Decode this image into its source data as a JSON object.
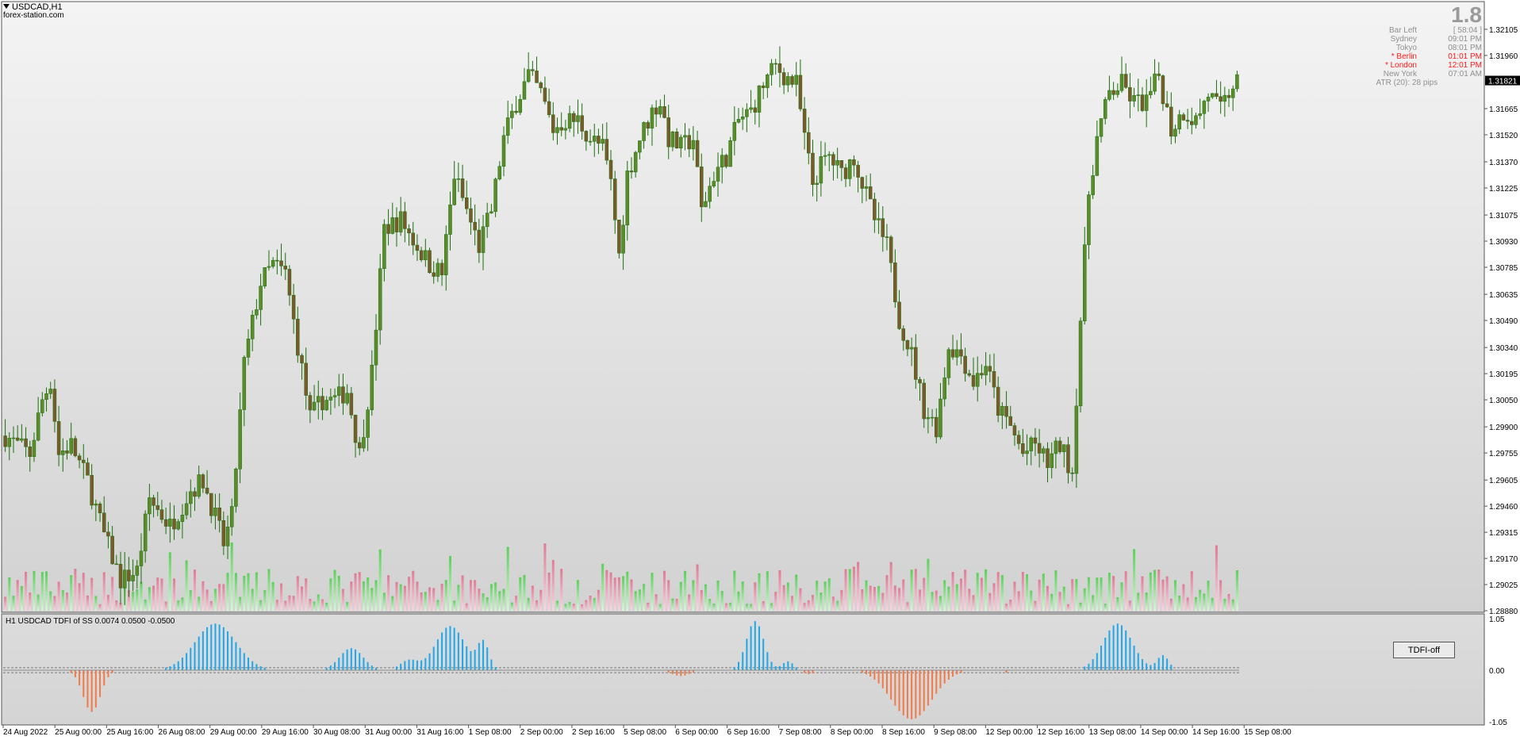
{
  "header": {
    "symbol_title": "USDCAD,H1",
    "watermark": "forex-station.com",
    "big_value": "1.8"
  },
  "info_panel": [
    {
      "label": "Bar Left",
      "value": "[ 58:04 ]",
      "color": "#8f8f8f"
    },
    {
      "label": "Sydney",
      "value": "09:01 PM",
      "color": "#8f8f8f"
    },
    {
      "label": "Tokyo",
      "value": "08:01 PM",
      "color": "#8f8f8f"
    },
    {
      "label": "* Berlin",
      "value": "01:01 PM",
      "color": "#ff1a1a"
    },
    {
      "label": "* London",
      "value": "12:01 PM",
      "color": "#ff1a1a"
    },
    {
      "label": "New York",
      "value": "07:01 AM",
      "color": "#8f8f8f"
    },
    {
      "label": "ATR (20): 28 pips",
      "value": "",
      "color": "#8f8f8f"
    }
  ],
  "indicator": {
    "label": "H1 USDCAD TDFI of SS 0.0074 0.0500 -0.0500",
    "button_label": "TDFI-off"
  },
  "chart_data": [
    {
      "type": "candlestick",
      "symbol": "USDCAD",
      "timeframe": "H1",
      "current_price": "1.31821",
      "ylim": [
        1.2888,
        1.3225
      ],
      "y_ticks": [
        "1.32105",
        "1.31960",
        "1.31665",
        "1.31520",
        "1.31370",
        "1.31225",
        "1.31075",
        "1.30930",
        "1.30785",
        "1.30635",
        "1.30490",
        "1.30340",
        "1.30195",
        "1.30050",
        "1.29900",
        "1.29755",
        "1.29605",
        "1.29460",
        "1.29315",
        "1.29170",
        "1.29025",
        "1.28880"
      ],
      "x_ticks": [
        "24 Aug 2022",
        "25 Aug 00:00",
        "25 Aug 16:00",
        "26 Aug 08:00",
        "29 Aug 00:00",
        "29 Aug 16:00",
        "30 Aug 08:00",
        "31 Aug 00:00",
        "31 Aug 16:00",
        "1 Sep 08:00",
        "2 Sep 00:00",
        "2 Sep 16:00",
        "5 Sep 08:00",
        "6 Sep 00:00",
        "6 Sep 16:00",
        "7 Sep 08:00",
        "8 Sep 00:00",
        "8 Sep 16:00",
        "9 Sep 08:00",
        "12 Sep 00:00",
        "12 Sep 16:00",
        "13 Sep 08:00",
        "14 Sep 00:00",
        "14 Sep 16:00",
        "15 Sep 08:00"
      ],
      "close_path": [
        [
          0,
          1.2985
        ],
        [
          6,
          1.2975
        ],
        [
          9,
          1.3005
        ],
        [
          11,
          1.3015
        ],
        [
          13,
          1.2975
        ],
        [
          16,
          1.298
        ],
        [
          20,
          1.296
        ],
        [
          24,
          1.293
        ],
        [
          28,
          1.2905
        ],
        [
          32,
          1.291
        ],
        [
          35,
          1.295
        ],
        [
          40,
          1.2935
        ],
        [
          45,
          1.2955
        ],
        [
          48,
          1.296
        ],
        [
          51,
          1.294
        ],
        [
          53,
          1.2925
        ],
        [
          55,
          1.294
        ],
        [
          58,
          1.3025
        ],
        [
          62,
          1.307
        ],
        [
          65,
          1.308
        ],
        [
          68,
          1.3075
        ],
        [
          71,
          1.3035
        ],
        [
          74,
          1.2995
        ],
        [
          77,
          1.3005
        ],
        [
          80,
          1.3005
        ],
        [
          83,
          1.301
        ],
        [
          86,
          1.2975
        ],
        [
          89,
          1.302
        ],
        [
          92,
          1.31
        ],
        [
          96,
          1.3105
        ],
        [
          100,
          1.309
        ],
        [
          103,
          1.308
        ],
        [
          106,
          1.3075
        ],
        [
          109,
          1.313
        ],
        [
          112,
          1.311
        ],
        [
          115,
          1.309
        ],
        [
          118,
          1.311
        ],
        [
          121,
          1.315
        ],
        [
          124,
          1.317
        ],
        [
          127,
          1.3185
        ],
        [
          130,
          1.3175
        ],
        [
          133,
          1.3155
        ],
        [
          136,
          1.316
        ],
        [
          139,
          1.316
        ],
        [
          142,
          1.315
        ],
        [
          145,
          1.3145
        ],
        [
          147,
          1.3125
        ],
        [
          149,
          1.3085
        ],
        [
          151,
          1.313
        ],
        [
          154,
          1.315
        ],
        [
          157,
          1.3165
        ],
        [
          159,
          1.317
        ],
        [
          161,
          1.315
        ],
        [
          164,
          1.3145
        ],
        [
          167,
          1.315
        ],
        [
          169,
          1.311
        ],
        [
          172,
          1.313
        ],
        [
          175,
          1.314
        ],
        [
          178,
          1.316
        ],
        [
          181,
          1.3165
        ],
        [
          184,
          1.318
        ],
        [
          187,
          1.319
        ],
        [
          189,
          1.3185
        ],
        [
          192,
          1.318
        ],
        [
          194,
          1.315
        ],
        [
          196,
          1.3125
        ],
        [
          198,
          1.3135
        ],
        [
          200,
          1.314
        ],
        [
          203,
          1.313
        ],
        [
          206,
          1.314
        ],
        [
          208,
          1.3125
        ],
        [
          211,
          1.3105
        ],
        [
          214,
          1.309
        ],
        [
          217,
          1.305
        ],
        [
          220,
          1.303
        ],
        [
          223,
          1.3
        ],
        [
          226,
          1.299
        ],
        [
          229,
          1.3035
        ],
        [
          232,
          1.303
        ],
        [
          235,
          1.3015
        ],
        [
          238,
          1.3025
        ],
        [
          241,
          1.3
        ],
        [
          244,
          1.299
        ],
        [
          247,
          1.2975
        ],
        [
          250,
          1.298
        ],
        [
          253,
          1.297
        ],
        [
          256,
          1.298
        ],
        [
          259,
          1.2965
        ],
        [
          261,
          1.305
        ],
        [
          263,
          1.312
        ],
        [
          265,
          1.315
        ],
        [
          268,
          1.3175
        ],
        [
          271,
          1.318
        ],
        [
          274,
          1.317
        ],
        [
          277,
          1.317
        ],
        [
          280,
          1.3185
        ],
        [
          283,
          1.3155
        ],
        [
          286,
          1.3165
        ],
        [
          289,
          1.316
        ],
        [
          292,
          1.3175
        ],
        [
          295,
          1.3165
        ],
        [
          298,
          1.318
        ],
        [
          300,
          1.3182
        ]
      ],
      "volume_bars": 300
    },
    {
      "type": "area",
      "name": "TDFI",
      "ylim": [
        -1.05,
        1.05
      ],
      "y_ticks": [
        "1.05",
        "0.00",
        "-1.05"
      ],
      "levels": [
        0.05,
        -0.05
      ],
      "last_value": 0.0074,
      "bumps": [
        {
          "center": 21,
          "width": 3,
          "amplitude": -0.85
        },
        {
          "center": 51,
          "width": 7,
          "amplitude": 0.95
        },
        {
          "center": 84,
          "width": 4,
          "amplitude": 0.45
        },
        {
          "center": 98,
          "width": 3,
          "amplitude": 0.2
        },
        {
          "center": 108,
          "width": 5,
          "amplitude": 0.9
        },
        {
          "center": 116,
          "width": 2,
          "amplitude": 0.55
        },
        {
          "center": 164,
          "width": 3,
          "amplitude": -0.12
        },
        {
          "center": 182,
          "width": 3,
          "amplitude": 1.0
        },
        {
          "center": 190,
          "width": 2,
          "amplitude": 0.18
        },
        {
          "center": 195,
          "width": 2,
          "amplitude": -0.08
        },
        {
          "center": 220,
          "width": 7,
          "amplitude": -1.0
        },
        {
          "center": 243,
          "width": 2,
          "amplitude": -0.05
        },
        {
          "center": 270,
          "width": 5,
          "amplitude": 0.95
        },
        {
          "center": 281,
          "width": 2,
          "amplitude": 0.3
        }
      ]
    }
  ],
  "colors": {
    "bull_body": "#5a8c2a",
    "bear_body": "#7a5a2a",
    "wick": "#1e6e0e",
    "volume_up": "#5ccf5a",
    "volume_down": "#e07a95",
    "tdfi_up": "#21a7e8",
    "tdfi_down": "#f07a4a",
    "price_badge_bg": "#000000"
  }
}
